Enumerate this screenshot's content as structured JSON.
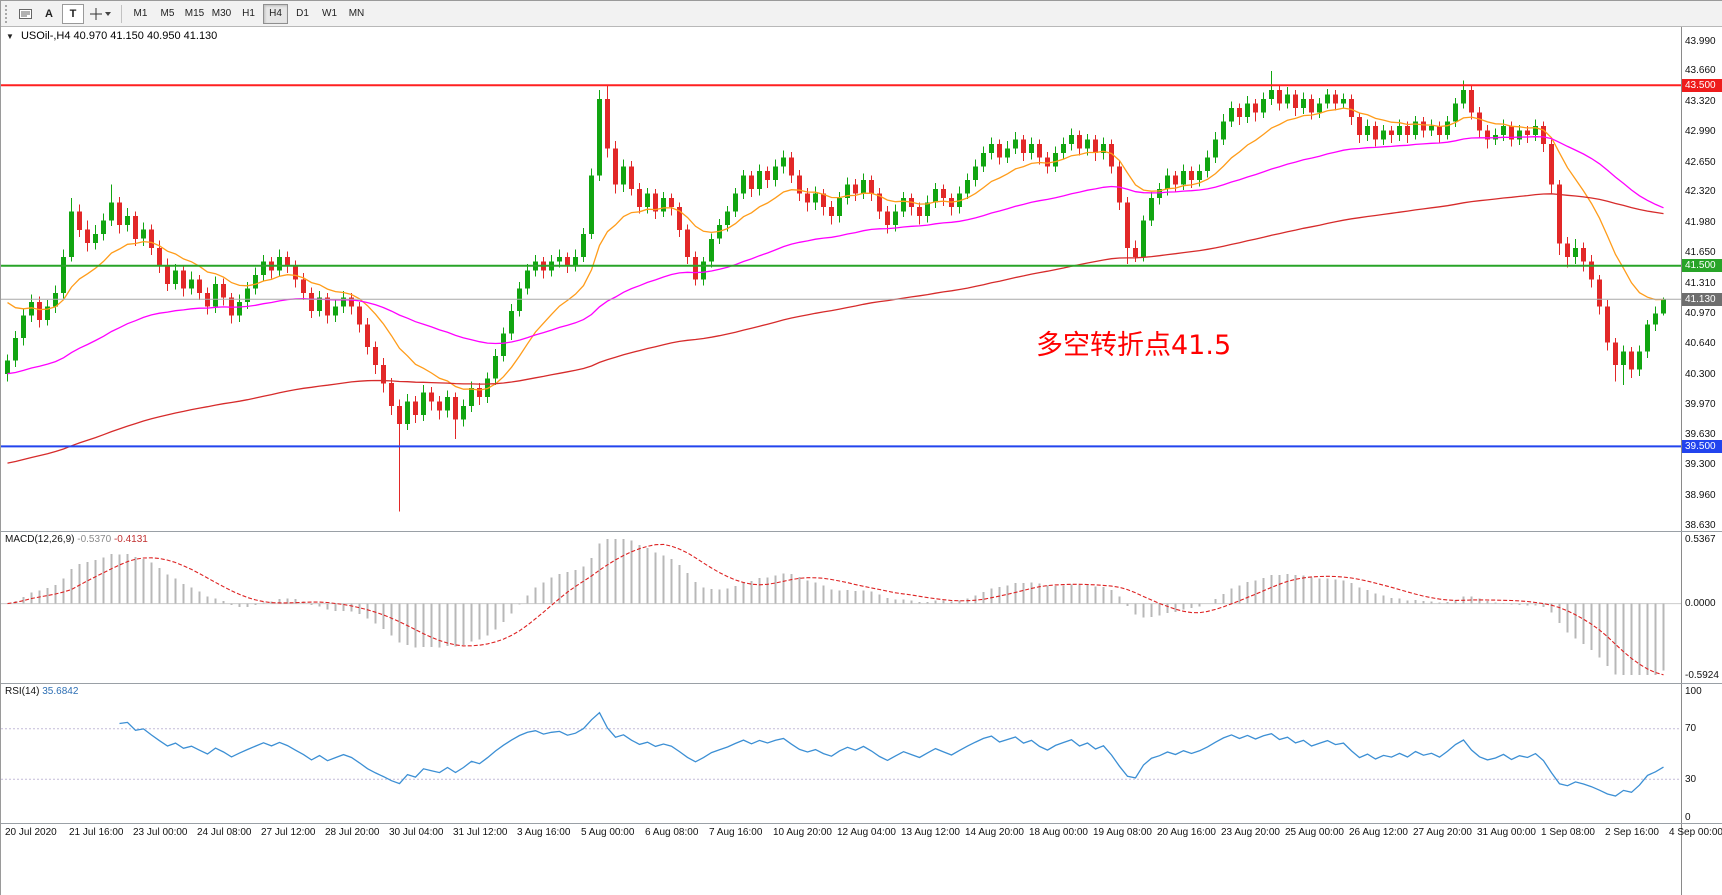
{
  "toolbar": {
    "a_button": "A",
    "t_button": "T",
    "timeframes": [
      "M1",
      "M5",
      "M15",
      "M30",
      "H1",
      "H4",
      "D1",
      "W1",
      "MN"
    ],
    "active_timeframe": "H4"
  },
  "icons": {
    "symbol_marker": "▼"
  },
  "chart": {
    "symbol_info": "USOil-,H4 40.970 41.150 40.950 41.130",
    "annotation": {
      "text": "多空转折点41.5",
      "color": "#ff0000"
    },
    "y_ticks": [
      "43.990",
      "43.660",
      "43.320",
      "42.990",
      "42.650",
      "42.320",
      "41.980",
      "41.650",
      "41.310",
      "40.970",
      "40.640",
      "40.300",
      "39.970",
      "39.630",
      "39.300",
      "38.960",
      "38.630"
    ],
    "badges": [
      {
        "label": "43.500",
        "value": 43.5,
        "color": "#ee1c1c"
      },
      {
        "label": "41.500",
        "value": 41.5,
        "color": "#28a428"
      },
      {
        "label": "41.130",
        "value": 41.13,
        "color": "#6e6e6e"
      },
      {
        "label": "39.500",
        "value": 39.5,
        "color": "#2244ee"
      }
    ],
    "x_labels": [
      "20 Jul 2020",
      "21 Jul 16:00",
      "23 Jul 00:00",
      "24 Jul 08:00",
      "27 Jul 12:00",
      "28 Jul 20:00",
      "30 Jul 04:00",
      "31 Jul 12:00",
      "3 Aug 16:00",
      "5 Aug 00:00",
      "6 Aug 08:00",
      "7 Aug 16:00",
      "10 Aug 20:00",
      "12 Aug 04:00",
      "13 Aug 12:00",
      "14 Aug 20:00",
      "18 Aug 00:00",
      "19 Aug 08:00",
      "20 Aug 16:00",
      "23 Aug 20:00",
      "25 Aug 00:00",
      "26 Aug 12:00",
      "27 Aug 20:00",
      "31 Aug 00:00",
      "1 Sep 08:00",
      "2 Sep 16:00",
      "4 Sep 00:00"
    ]
  },
  "macd": {
    "label": "MACD(12,26,9)",
    "main_value": "-0.5370",
    "signal_value": "-0.4131",
    "scale": [
      "0.5367",
      "0.0000",
      "-0.5924"
    ],
    "histogram_color": "#b8b8b8",
    "signal_color": "#dd2222"
  },
  "rsi": {
    "label": "RSI(14)",
    "value": "35.6842",
    "scale": [
      "100",
      "70",
      "30",
      "0"
    ],
    "levels": [
      70,
      30
    ],
    "line_color": "#3c8fd4"
  },
  "chart_data": {
    "type": "candlestick",
    "symbol": "USOil-",
    "timeframe": "H4",
    "title": "USOil-,H4 40.970 41.150 40.950 41.130",
    "ohlc_last": {
      "open": 40.97,
      "high": 41.15,
      "low": 40.95,
      "close": 41.13
    },
    "y_range": [
      38.63,
      43.99
    ],
    "last_price": 41.13,
    "last_price_line_color": "#a8a8a8",
    "up_color": "#11a511",
    "down_color": "#e22828",
    "hlines": [
      {
        "value": 43.5,
        "color": "#ff2020"
      },
      {
        "value": 41.5,
        "color": "#28a428"
      },
      {
        "value": 39.5,
        "color": "#2244ee"
      }
    ],
    "moving_averages": [
      {
        "period": 13,
        "color": "#ff9c1a",
        "seed": 41.2
      },
      {
        "period": 55,
        "color": "#ff00ff",
        "seed": 40.3
      },
      {
        "period": 150,
        "color": "#d62b2b",
        "seed": 39.3
      }
    ],
    "macd_params": [
      12,
      26,
      9
    ],
    "macd_range": [
      0.5367,
      -0.5924
    ],
    "rsi_period": 14,
    "candles": [
      [
        40.3,
        40.52,
        40.22,
        40.45
      ],
      [
        40.45,
        40.78,
        40.38,
        40.7
      ],
      [
        40.7,
        41.02,
        40.62,
        40.95
      ],
      [
        40.95,
        41.18,
        40.88,
        41.1
      ],
      [
        41.1,
        41.16,
        40.82,
        40.9
      ],
      [
        40.9,
        41.12,
        40.84,
        41.05
      ],
      [
        41.05,
        41.28,
        40.98,
        41.2
      ],
      [
        41.2,
        41.68,
        41.14,
        41.6
      ],
      [
        41.6,
        42.25,
        41.55,
        42.1
      ],
      [
        42.1,
        42.18,
        41.82,
        41.9
      ],
      [
        41.9,
        42.0,
        41.66,
        41.75
      ],
      [
        41.75,
        41.95,
        41.68,
        41.85
      ],
      [
        41.85,
        42.08,
        41.78,
        42.0
      ],
      [
        42.0,
        42.4,
        41.94,
        42.2
      ],
      [
        42.2,
        42.26,
        41.86,
        41.95
      ],
      [
        41.95,
        42.14,
        41.88,
        42.05
      ],
      [
        42.05,
        42.1,
        41.72,
        41.8
      ],
      [
        41.8,
        41.98,
        41.72,
        41.9
      ],
      [
        41.9,
        41.96,
        41.62,
        41.7
      ],
      [
        41.7,
        41.78,
        41.42,
        41.5
      ],
      [
        41.5,
        41.58,
        41.22,
        41.3
      ],
      [
        41.3,
        41.52,
        41.24,
        41.45
      ],
      [
        41.45,
        41.5,
        41.16,
        41.25
      ],
      [
        41.25,
        41.44,
        41.18,
        41.35
      ],
      [
        41.35,
        41.4,
        41.12,
        41.2
      ],
      [
        41.2,
        41.26,
        40.96,
        41.05
      ],
      [
        41.05,
        41.38,
        40.98,
        41.3
      ],
      [
        41.3,
        41.36,
        41.06,
        41.15
      ],
      [
        41.15,
        41.2,
        40.86,
        40.95
      ],
      [
        40.95,
        41.18,
        40.88,
        41.1
      ],
      [
        41.1,
        41.32,
        41.02,
        41.25
      ],
      [
        41.25,
        41.48,
        41.18,
        41.4
      ],
      [
        41.4,
        41.62,
        41.34,
        41.55
      ],
      [
        41.55,
        41.6,
        41.36,
        41.45
      ],
      [
        41.45,
        41.68,
        41.38,
        41.6
      ],
      [
        41.6,
        41.66,
        41.42,
        41.5
      ],
      [
        41.5,
        41.56,
        41.26,
        41.35
      ],
      [
        41.35,
        41.42,
        41.12,
        41.2
      ],
      [
        41.2,
        41.26,
        40.92,
        41.0
      ],
      [
        41.0,
        41.22,
        40.94,
        41.15
      ],
      [
        41.15,
        41.2,
        40.86,
        40.95
      ],
      [
        40.95,
        41.12,
        40.88,
        41.05
      ],
      [
        41.05,
        41.22,
        40.98,
        41.15
      ],
      [
        41.15,
        41.2,
        40.96,
        41.05
      ],
      [
        41.05,
        41.1,
        40.76,
        40.85
      ],
      [
        40.85,
        40.92,
        40.52,
        40.6
      ],
      [
        40.6,
        40.66,
        40.3,
        40.4
      ],
      [
        40.4,
        40.48,
        40.1,
        40.2
      ],
      [
        40.2,
        40.26,
        39.85,
        39.95
      ],
      [
        39.95,
        40.02,
        38.78,
        39.75
      ],
      [
        39.75,
        40.08,
        39.68,
        40.0
      ],
      [
        40.0,
        40.06,
        39.76,
        39.85
      ],
      [
        39.85,
        40.18,
        39.78,
        40.1
      ],
      [
        40.1,
        40.16,
        39.9,
        40.0
      ],
      [
        40.0,
        40.06,
        39.8,
        39.9
      ],
      [
        39.9,
        40.12,
        39.82,
        40.05
      ],
      [
        40.05,
        40.1,
        39.58,
        39.8
      ],
      [
        39.8,
        40.02,
        39.72,
        39.95
      ],
      [
        39.95,
        40.22,
        39.88,
        40.15
      ],
      [
        40.15,
        40.2,
        39.96,
        40.05
      ],
      [
        40.05,
        40.32,
        39.98,
        40.25
      ],
      [
        40.25,
        40.58,
        40.18,
        40.5
      ],
      [
        40.5,
        40.82,
        40.44,
        40.75
      ],
      [
        40.75,
        41.08,
        40.68,
        41.0
      ],
      [
        41.0,
        41.32,
        40.94,
        41.25
      ],
      [
        41.25,
        41.52,
        41.18,
        41.45
      ],
      [
        41.45,
        41.62,
        41.38,
        41.55
      ],
      [
        41.55,
        41.6,
        41.36,
        41.45
      ],
      [
        41.45,
        41.62,
        41.38,
        41.55
      ],
      [
        41.55,
        41.68,
        41.48,
        41.6
      ],
      [
        41.6,
        41.65,
        41.42,
        41.5
      ],
      [
        41.5,
        41.68,
        41.44,
        41.6
      ],
      [
        41.6,
        41.92,
        41.54,
        41.85
      ],
      [
        41.85,
        42.58,
        41.8,
        42.5
      ],
      [
        42.5,
        43.45,
        42.44,
        43.35
      ],
      [
        43.35,
        43.5,
        42.7,
        42.8
      ],
      [
        42.8,
        42.88,
        42.3,
        42.4
      ],
      [
        42.4,
        42.68,
        42.32,
        42.6
      ],
      [
        42.6,
        42.66,
        42.28,
        42.35
      ],
      [
        42.35,
        42.42,
        42.08,
        42.15
      ],
      [
        42.15,
        42.36,
        42.08,
        42.3
      ],
      [
        42.3,
        42.35,
        42.02,
        42.1
      ],
      [
        42.1,
        42.32,
        42.04,
        42.25
      ],
      [
        42.25,
        42.3,
        42.06,
        42.15
      ],
      [
        42.15,
        42.2,
        41.82,
        41.9
      ],
      [
        41.9,
        41.96,
        41.52,
        41.6
      ],
      [
        41.6,
        41.66,
        41.28,
        41.35
      ],
      [
        41.35,
        41.6,
        41.28,
        41.55
      ],
      [
        41.55,
        41.86,
        41.48,
        41.8
      ],
      [
        41.8,
        42.02,
        41.74,
        41.95
      ],
      [
        41.95,
        42.16,
        41.88,
        42.1
      ],
      [
        42.1,
        42.36,
        42.04,
        42.3
      ],
      [
        42.3,
        42.56,
        42.24,
        42.5
      ],
      [
        42.5,
        42.55,
        42.26,
        42.35
      ],
      [
        42.35,
        42.62,
        42.28,
        42.55
      ],
      [
        42.55,
        42.6,
        42.36,
        42.45
      ],
      [
        42.45,
        42.68,
        42.38,
        42.6
      ],
      [
        42.6,
        42.78,
        42.52,
        42.7
      ],
      [
        42.7,
        42.76,
        42.42,
        42.5
      ],
      [
        42.5,
        42.56,
        42.22,
        42.3
      ],
      [
        42.3,
        42.36,
        42.1,
        42.2
      ],
      [
        42.2,
        42.38,
        42.12,
        42.3
      ],
      [
        42.3,
        42.35,
        42.06,
        42.15
      ],
      [
        42.15,
        42.22,
        41.96,
        42.05
      ],
      [
        42.05,
        42.32,
        41.98,
        42.25
      ],
      [
        42.25,
        42.48,
        42.18,
        42.4
      ],
      [
        42.4,
        42.46,
        42.22,
        42.3
      ],
      [
        42.3,
        42.52,
        42.24,
        42.45
      ],
      [
        42.45,
        42.5,
        42.22,
        42.3
      ],
      [
        42.3,
        42.36,
        42.02,
        42.1
      ],
      [
        42.1,
        42.16,
        41.86,
        41.95
      ],
      [
        41.95,
        42.18,
        41.88,
        42.1
      ],
      [
        42.1,
        42.32,
        42.04,
        42.25
      ],
      [
        42.25,
        42.3,
        42.06,
        42.15
      ],
      [
        42.15,
        42.2,
        41.96,
        42.05
      ],
      [
        42.05,
        42.28,
        41.98,
        42.2
      ],
      [
        42.2,
        42.42,
        42.14,
        42.35
      ],
      [
        42.35,
        42.4,
        42.16,
        42.25
      ],
      [
        42.25,
        42.3,
        42.06,
        42.15
      ],
      [
        42.15,
        42.38,
        42.08,
        42.3
      ],
      [
        42.3,
        42.52,
        42.24,
        42.45
      ],
      [
        42.45,
        42.68,
        42.38,
        42.6
      ],
      [
        42.6,
        42.82,
        42.54,
        42.75
      ],
      [
        42.75,
        42.92,
        42.68,
        42.85
      ],
      [
        42.85,
        42.9,
        42.62,
        42.7
      ],
      [
        42.7,
        42.88,
        42.64,
        42.8
      ],
      [
        42.8,
        42.98,
        42.74,
        42.9
      ],
      [
        42.9,
        42.95,
        42.66,
        42.75
      ],
      [
        42.75,
        42.92,
        42.68,
        42.85
      ],
      [
        42.85,
        42.9,
        42.62,
        42.7
      ],
      [
        42.7,
        42.76,
        42.52,
        42.6
      ],
      [
        42.6,
        42.82,
        42.54,
        42.75
      ],
      [
        42.75,
        42.92,
        42.68,
        42.85
      ],
      [
        42.85,
        43.02,
        42.78,
        42.95
      ],
      [
        42.95,
        43.0,
        42.72,
        42.8
      ],
      [
        42.8,
        42.96,
        42.72,
        42.9
      ],
      [
        42.9,
        42.95,
        42.66,
        42.75
      ],
      [
        42.75,
        42.92,
        42.68,
        42.85
      ],
      [
        42.85,
        42.9,
        42.52,
        42.6
      ],
      [
        42.6,
        42.66,
        42.12,
        42.2
      ],
      [
        42.2,
        42.26,
        41.52,
        41.7
      ],
      [
        41.7,
        41.78,
        41.54,
        41.6
      ],
      [
        41.6,
        42.06,
        41.55,
        42.0
      ],
      [
        42.0,
        42.32,
        41.94,
        42.25
      ],
      [
        42.25,
        42.42,
        42.18,
        42.35
      ],
      [
        42.35,
        42.58,
        42.28,
        42.5
      ],
      [
        42.5,
        42.55,
        42.32,
        42.4
      ],
      [
        42.4,
        42.62,
        42.34,
        42.55
      ],
      [
        42.55,
        42.6,
        42.36,
        42.45
      ],
      [
        42.45,
        42.62,
        42.38,
        42.55
      ],
      [
        42.55,
        42.78,
        42.48,
        42.7
      ],
      [
        42.7,
        42.98,
        42.64,
        42.9
      ],
      [
        42.9,
        43.18,
        42.84,
        43.1
      ],
      [
        43.1,
        43.32,
        43.04,
        43.25
      ],
      [
        43.25,
        43.3,
        43.06,
        43.15
      ],
      [
        43.15,
        43.38,
        43.08,
        43.3
      ],
      [
        43.3,
        43.35,
        43.1,
        43.2
      ],
      [
        43.2,
        43.42,
        43.14,
        43.35
      ],
      [
        43.35,
        43.66,
        43.28,
        43.45
      ],
      [
        43.45,
        43.5,
        43.22,
        43.3
      ],
      [
        43.3,
        43.48,
        43.24,
        43.4
      ],
      [
        43.4,
        43.45,
        43.16,
        43.25
      ],
      [
        43.25,
        43.42,
        43.18,
        43.35
      ],
      [
        43.35,
        43.4,
        43.12,
        43.2
      ],
      [
        43.2,
        43.36,
        43.14,
        43.3
      ],
      [
        43.3,
        43.46,
        43.24,
        43.4
      ],
      [
        43.4,
        43.45,
        43.22,
        43.3
      ],
      [
        43.3,
        43.41,
        43.24,
        43.35
      ],
      [
        43.35,
        43.4,
        43.06,
        43.15
      ],
      [
        43.15,
        43.2,
        42.86,
        42.95
      ],
      [
        42.95,
        43.12,
        42.88,
        43.05
      ],
      [
        43.05,
        43.1,
        42.82,
        42.9
      ],
      [
        42.9,
        43.06,
        42.84,
        43.0
      ],
      [
        43.0,
        43.05,
        42.86,
        42.95
      ],
      [
        42.95,
        43.12,
        42.88,
        43.05
      ],
      [
        43.05,
        43.1,
        42.86,
        42.95
      ],
      [
        42.95,
        43.16,
        42.9,
        43.1
      ],
      [
        43.1,
        43.15,
        42.92,
        43.0
      ],
      [
        43.0,
        43.12,
        42.94,
        43.05
      ],
      [
        43.05,
        43.1,
        42.86,
        42.95
      ],
      [
        42.95,
        43.16,
        42.9,
        43.1
      ],
      [
        43.1,
        43.36,
        43.04,
        43.3
      ],
      [
        43.3,
        43.55,
        43.24,
        43.45
      ],
      [
        43.45,
        43.5,
        43.12,
        43.2
      ],
      [
        43.2,
        43.26,
        42.92,
        43.0
      ],
      [
        43.0,
        43.06,
        42.8,
        42.9
      ],
      [
        42.9,
        43.02,
        42.84,
        42.95
      ],
      [
        42.95,
        43.12,
        42.88,
        43.05
      ],
      [
        43.05,
        43.1,
        42.82,
        42.9
      ],
      [
        42.9,
        43.06,
        42.84,
        43.0
      ],
      [
        43.0,
        43.05,
        42.86,
        42.95
      ],
      [
        42.95,
        43.12,
        42.88,
        43.05
      ],
      [
        43.05,
        43.1,
        42.76,
        42.85
      ],
      [
        42.85,
        42.9,
        42.3,
        42.4
      ],
      [
        42.4,
        42.45,
        41.62,
        41.75
      ],
      [
        41.75,
        41.82,
        41.48,
        41.6
      ],
      [
        41.6,
        41.8,
        41.52,
        41.7
      ],
      [
        41.7,
        41.76,
        41.44,
        41.55
      ],
      [
        41.55,
        41.62,
        41.26,
        41.35
      ],
      [
        41.35,
        41.4,
        40.96,
        41.05
      ],
      [
        41.05,
        41.12,
        40.56,
        40.65
      ],
      [
        40.65,
        40.7,
        40.22,
        40.4
      ],
      [
        40.4,
        40.62,
        40.18,
        40.55
      ],
      [
        40.55,
        40.6,
        40.26,
        40.35
      ],
      [
        40.35,
        40.62,
        40.28,
        40.55
      ],
      [
        40.55,
        40.9,
        40.48,
        40.85
      ],
      [
        40.85,
        41.05,
        40.78,
        40.97
      ],
      [
        40.97,
        41.15,
        40.95,
        41.13
      ]
    ]
  }
}
